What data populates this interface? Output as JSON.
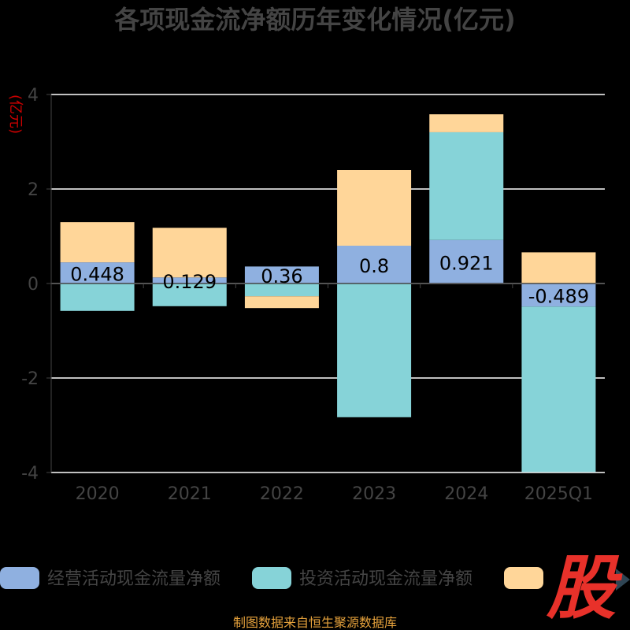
{
  "chart_data": {
    "type": "bar",
    "stacked": true,
    "title": "各项现金流净额历年变化情况(亿元)",
    "ylabel": "(亿元)",
    "xlabel": "",
    "ylim": [
      -4,
      4
    ],
    "yticks": [
      "4",
      "2",
      "0",
      "-2",
      "-4"
    ],
    "grid": true,
    "legend_position": "bottom",
    "categories": [
      "2020",
      "2021",
      "2022",
      "2023",
      "2024",
      "2025Q1"
    ],
    "series": [
      {
        "name": "经营活动现金流量净额",
        "color": "#8fb0e0",
        "values": [
          0.448,
          0.129,
          0.36,
          0.8,
          0.921,
          -0.489
        ],
        "labels": [
          "0.448",
          "0.129",
          "0.36",
          "0.8",
          "0.921",
          "-0.489"
        ]
      },
      {
        "name": "投资活动现金流量净额",
        "color": "#86d3d8",
        "values": [
          -0.58,
          -0.48,
          -0.27,
          -2.83,
          2.28,
          -3.5
        ]
      },
      {
        "color": "#ffd699",
        "values": [
          0.85,
          1.05,
          -0.25,
          1.6,
          0.38,
          0.66
        ]
      }
    ],
    "colors": {
      "label_text": "#000000",
      "axis_text": "#444444",
      "grid": "#ffffff",
      "ylabel": "#cc0000",
      "source": "#e6a23c",
      "logo": "#e8312a"
    }
  },
  "source_text": "制图数据来自恒生聚源数据库",
  "logo_text": "股"
}
